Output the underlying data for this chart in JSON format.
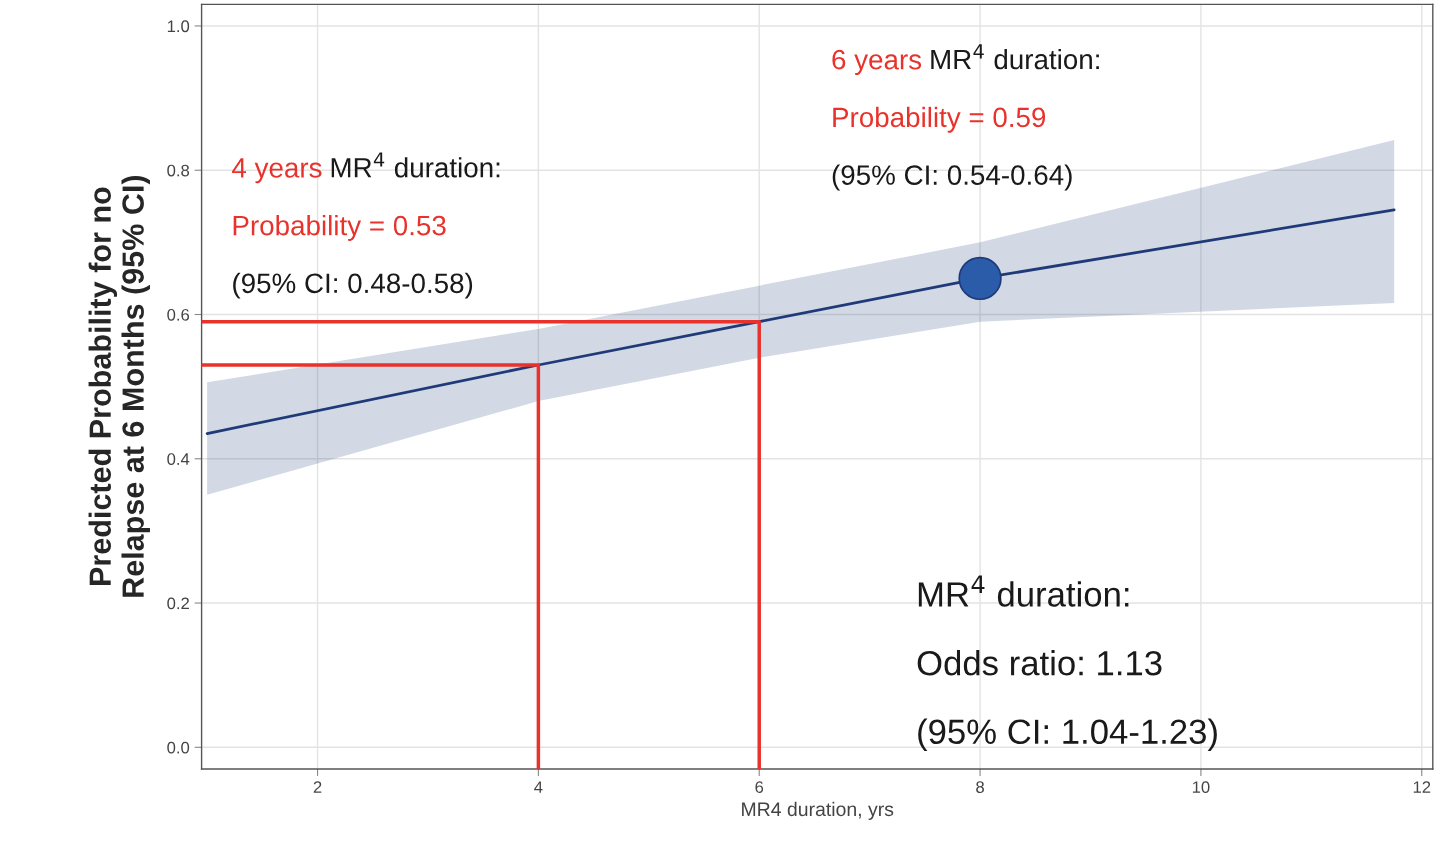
{
  "chart_data": {
    "type": "line",
    "xlabel": "MR4 duration, yrs",
    "ylabel": "Predicted Probability for no\nRelapse at 6 Months (95% CI)",
    "xlim": [
      0.95,
      12.1
    ],
    "xticks": [
      2,
      4,
      6,
      8,
      10,
      12
    ],
    "ylim": [
      -0.03,
      1.03
    ],
    "yticks": [
      {
        "value": 0,
        "label": "0.0"
      },
      0.2,
      0.4,
      0.6,
      0.8,
      {
        "value": 1,
        "label": "1.0"
      }
    ],
    "grid": true,
    "series": [
      {
        "color": "#1f3a78",
        "x": [
          1,
          4,
          6,
          8,
          11.75
        ],
        "values": [
          0.435,
          0.53,
          0.59,
          0.65,
          0.745
        ],
        "lower": [
          0.35,
          0.48,
          0.54,
          0.59,
          0.616
        ],
        "upper": [
          0.506,
          0.58,
          0.64,
          0.7,
          0.842
        ]
      },
      {
        "type": "line",
        "color": "#e8322b",
        "x": [
          0.95,
          6,
          6
        ],
        "values": [
          0.59,
          0.59,
          -0.03
        ]
      },
      {
        "type": "line",
        "color": "#e8322b",
        "x": [
          0.95,
          4,
          4
        ],
        "values": [
          0.53,
          0.53,
          -0.03
        ]
      },
      {
        "type": "scatter",
        "color": "#2a5caa",
        "marker": "circle",
        "x": [
          8
        ],
        "values": [
          0.65
        ]
      }
    ],
    "annotations": [
      "4 years",
      "MR$^{4}$ duration:",
      "Probability = 0.53",
      "(95% CI: 0.48-0.58)",
      "6 years",
      "MR$^{4}$ duration:",
      "Probability = 0.59",
      "(95% CI: 0.54-0.64)",
      "MR$^{4}$ duration:",
      "Odds ratio: 1.13",
      "(95% CI: 1.04-1.23)"
    ]
  }
}
